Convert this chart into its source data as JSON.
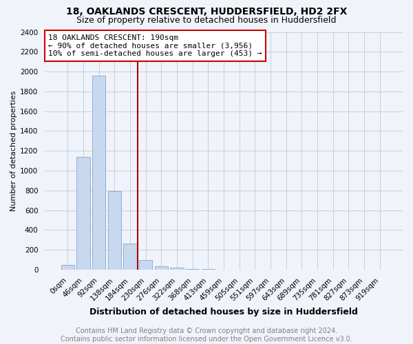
{
  "title": "18, OAKLANDS CRESCENT, HUDDERSFIELD, HD2 2FX",
  "subtitle": "Size of property relative to detached houses in Huddersfield",
  "xlabel": "Distribution of detached houses by size in Huddersfield",
  "ylabel": "Number of detached properties",
  "annotation_title": "18 OAKLANDS CRESCENT: 190sqm",
  "annotation_line1": "← 90% of detached houses are smaller (3,956)",
  "annotation_line2": "10% of semi-detached houses are larger (453) →",
  "categories": [
    "0sqm",
    "46sqm",
    "92sqm",
    "138sqm",
    "184sqm",
    "230sqm",
    "276sqm",
    "322sqm",
    "368sqm",
    "413sqm",
    "459sqm",
    "505sqm",
    "551sqm",
    "597sqm",
    "643sqm",
    "689sqm",
    "735sqm",
    "781sqm",
    "827sqm",
    "873sqm",
    "919sqm"
  ],
  "values": [
    50,
    1140,
    1960,
    790,
    265,
    100,
    35,
    18,
    8,
    5,
    3,
    2,
    1,
    1,
    1,
    0,
    0,
    0,
    0,
    0,
    0
  ],
  "bar_color": "#c8d8ee",
  "bar_edge_color": "#7fa8cc",
  "vline_color": "#aa0000",
  "vline_index": 4.5,
  "ylim_max": 2400,
  "ytick_step": 200,
  "background_color": "#f0f4fa",
  "plot_bg_color": "#f0f4fa",
  "annotation_box_edge": "#cc0000",
  "annotation_fontsize": 8,
  "title_fontsize": 10,
  "subtitle_fontsize": 9,
  "xlabel_fontsize": 9,
  "ylabel_fontsize": 8,
  "tick_fontsize": 7.5,
  "footer": "Contains HM Land Registry data © Crown copyright and database right 2024.\nContains public sector information licensed under the Open Government Licence v3.0.",
  "footer_fontsize": 7
}
